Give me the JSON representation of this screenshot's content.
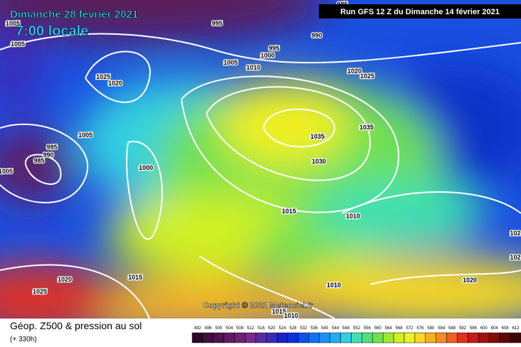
{
  "header": {
    "date": "Dimanche 28 février 2021",
    "time": "7:00 locale",
    "run": "Run GFS 12 Z du Dimanche 14 février 2021"
  },
  "isobars": [
    "995",
    "985",
    "990",
    "1005",
    "1005",
    "995",
    "1000",
    "1005",
    "1010",
    "1025",
    "1020",
    "1020",
    "1025",
    "1005",
    "995",
    "990",
    "985",
    "1005",
    "1000",
    "1035",
    "1035",
    "1030",
    "1015",
    "1010",
    "1020",
    "1015",
    "1025",
    "1010",
    "1015",
    "1010",
    "1020",
    "102",
    "102"
  ],
  "copyright": "Copyright © 2021 Meteociel.fr",
  "footer": {
    "title": "Géop. Z500 & pression au sol",
    "lead": "(+ 330h)"
  },
  "legend": [
    {
      "label": "492",
      "color": "#2a0a2a"
    },
    {
      "label": "496",
      "color": "#3c0f3c"
    },
    {
      "label": "500",
      "color": "#4e144e"
    },
    {
      "label": "504",
      "color": "#601a60"
    },
    {
      "label": "508",
      "color": "#721f72"
    },
    {
      "label": "512",
      "color": "#7a2a8a"
    },
    {
      "label": "516",
      "color": "#5a2aa0"
    },
    {
      "label": "520",
      "color": "#3a2ab8"
    },
    {
      "label": "524",
      "color": "#1a20c8"
    },
    {
      "label": "528",
      "color": "#0a30e0"
    },
    {
      "label": "532",
      "color": "#0a50f0"
    },
    {
      "label": "536",
      "color": "#1070f8"
    },
    {
      "label": "540",
      "color": "#1a90f8"
    },
    {
      "label": "544",
      "color": "#20b0f0"
    },
    {
      "label": "548",
      "color": "#30d0e0"
    },
    {
      "label": "552",
      "color": "#40e0b0"
    },
    {
      "label": "556",
      "color": "#50e080"
    },
    {
      "label": "560",
      "color": "#70e050"
    },
    {
      "label": "564",
      "color": "#a0e830"
    },
    {
      "label": "568",
      "color": "#d0f020"
    },
    {
      "label": "572",
      "color": "#f0f020"
    },
    {
      "label": "576",
      "color": "#f8d820"
    },
    {
      "label": "580",
      "color": "#f8b020"
    },
    {
      "label": "584",
      "color": "#f88820"
    },
    {
      "label": "588",
      "color": "#f06020"
    },
    {
      "label": "592",
      "color": "#e03020"
    },
    {
      "label": "596",
      "color": "#c81818"
    },
    {
      "label": "600",
      "color": "#a01010"
    },
    {
      "label": "604",
      "color": "#800a0a"
    },
    {
      "label": "608",
      "color": "#600606"
    },
    {
      "label": "612",
      "color": "#400404"
    }
  ]
}
